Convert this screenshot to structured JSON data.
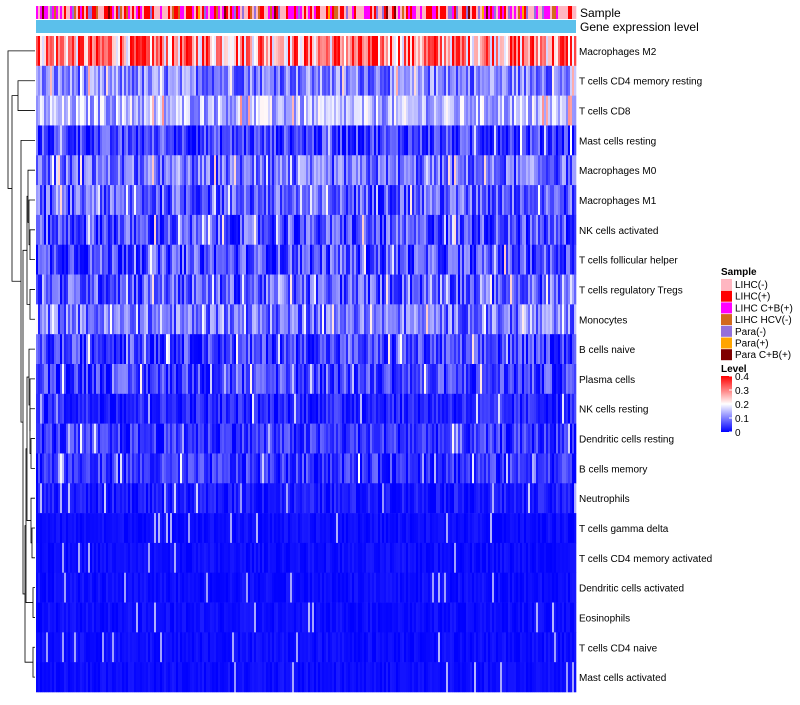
{
  "chart_data": {
    "type": "heatmap",
    "annotation_tracks": [
      "Sample",
      "Gene expression level"
    ],
    "rows": [
      "Macrophages M2",
      "T cells CD4 memory resting",
      "T cells CD8",
      "Mast cells resting",
      "Macrophages M0",
      "Macrophages M1",
      "NK cells activated",
      "T cells follicular helper",
      "T cells regulatory  Tregs",
      "Monocytes",
      "B cells naive",
      "Plasma cells",
      "NK cells resting",
      "Dendritic cells resting",
      "B cells memory",
      "Neutrophils",
      "T cells gamma delta",
      "T cells CD4 memory activated",
      "Dendritic cells activated",
      "Eosinophils",
      "T cells CD4 naive",
      "Mast cells activated"
    ],
    "row_mean_level": [
      0.3,
      0.1,
      0.14,
      0.05,
      0.08,
      0.07,
      0.06,
      0.06,
      0.07,
      0.09,
      0.05,
      0.05,
      0.03,
      0.04,
      0.04,
      0.02,
      0.01,
      0.01,
      0.01,
      0.01,
      0.01,
      0.01
    ],
    "sample_legend": {
      "title": "Sample",
      "entries": [
        {
          "label": "LIHC(-)",
          "color": "#ffb6c1"
        },
        {
          "label": "LIHC(+)",
          "color": "#ff0000"
        },
        {
          "label": "LIHC C+B(+)",
          "color": "#ff00ff"
        },
        {
          "label": "LIHC HCV(-)",
          "color": "#d2691e"
        },
        {
          "label": "Para(-)",
          "color": "#9370db"
        },
        {
          "label": "Para(+)",
          "color": "#ffa500"
        },
        {
          "label": "Para C+B(+)",
          "color": "#800000"
        }
      ]
    },
    "level_legend": {
      "title": "Level",
      "ticks": [
        "0.4",
        "0.3",
        "0.2",
        "0.1",
        "0"
      ],
      "tick_values": [
        0.4,
        0.3,
        0.2,
        0.1,
        0
      ],
      "range": [
        0,
        0.4
      ],
      "colors": {
        "low": "#0000ff",
        "mid": "#ffffff",
        "high": "#ff0000"
      }
    },
    "gene_expression_track_color": "#5bc0eb",
    "legend_placement": "right"
  }
}
